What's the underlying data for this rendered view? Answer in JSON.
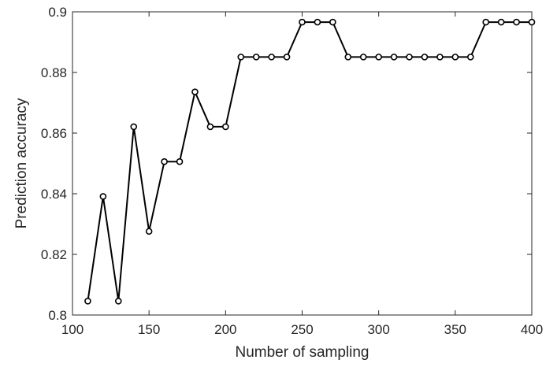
{
  "chart_data": {
    "type": "line",
    "title": "",
    "xlabel": "Number of sampling",
    "ylabel": "Prediction accuracy",
    "xlim": [
      100,
      400
    ],
    "ylim": [
      0.8,
      0.9
    ],
    "xticks": [
      100,
      150,
      200,
      250,
      300,
      350,
      400
    ],
    "yticks": [
      0.8,
      0.82,
      0.84,
      0.86,
      0.88,
      0.9
    ],
    "xtick_labels": [
      "100",
      "150",
      "200",
      "250",
      "300",
      "350",
      "400"
    ],
    "ytick_labels": [
      "0.8",
      "0.82",
      "0.84",
      "0.86",
      "0.88",
      "0.9"
    ],
    "grid": false,
    "marker": "circle",
    "line_color": "#000000",
    "series": [
      {
        "x": [
          110,
          120,
          130,
          140,
          150,
          160,
          170,
          180,
          190,
          200,
          210,
          220,
          230,
          240,
          250,
          260,
          270,
          280,
          290,
          300,
          310,
          320,
          330,
          340,
          350,
          360,
          370,
          380,
          390,
          400
        ],
        "values": [
          0.8046,
          0.8391,
          0.8046,
          0.8621,
          0.8276,
          0.8506,
          0.8506,
          0.8736,
          0.8621,
          0.8621,
          0.8851,
          0.8851,
          0.8851,
          0.8851,
          0.8966,
          0.8966,
          0.8966,
          0.8851,
          0.8851,
          0.8851,
          0.8851,
          0.8851,
          0.8851,
          0.8851,
          0.8851,
          0.8851,
          0.8966,
          0.8966,
          0.8966,
          0.8966
        ]
      }
    ]
  }
}
